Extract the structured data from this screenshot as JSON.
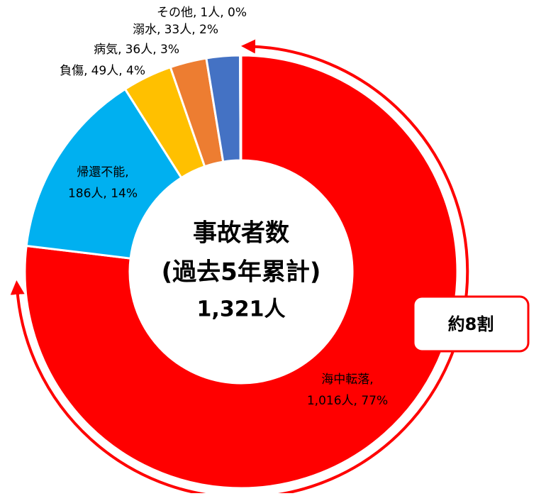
{
  "chart_data": {
    "type": "donut",
    "categories": [
      "海中転落,",
      "帰還不能,",
      "負傷,",
      "病気,",
      "溺水,",
      "その他,"
    ],
    "values": [
      1016,
      186,
      49,
      36,
      33,
      1
    ],
    "value_labels": [
      "1,016人, 77%",
      "186人, 14%",
      "49人, 4%",
      "36人, 3%",
      "33人, 2%",
      "1人, 0%"
    ],
    "colors": [
      "#ff0000",
      "#00b0f0",
      "#ffc000",
      "#ed7d31",
      "#4472c4",
      "#a5a5a5"
    ],
    "center_text": [
      "事故者数",
      "(過去5年累計)",
      "1,321人"
    ],
    "annotation": "約8割"
  }
}
